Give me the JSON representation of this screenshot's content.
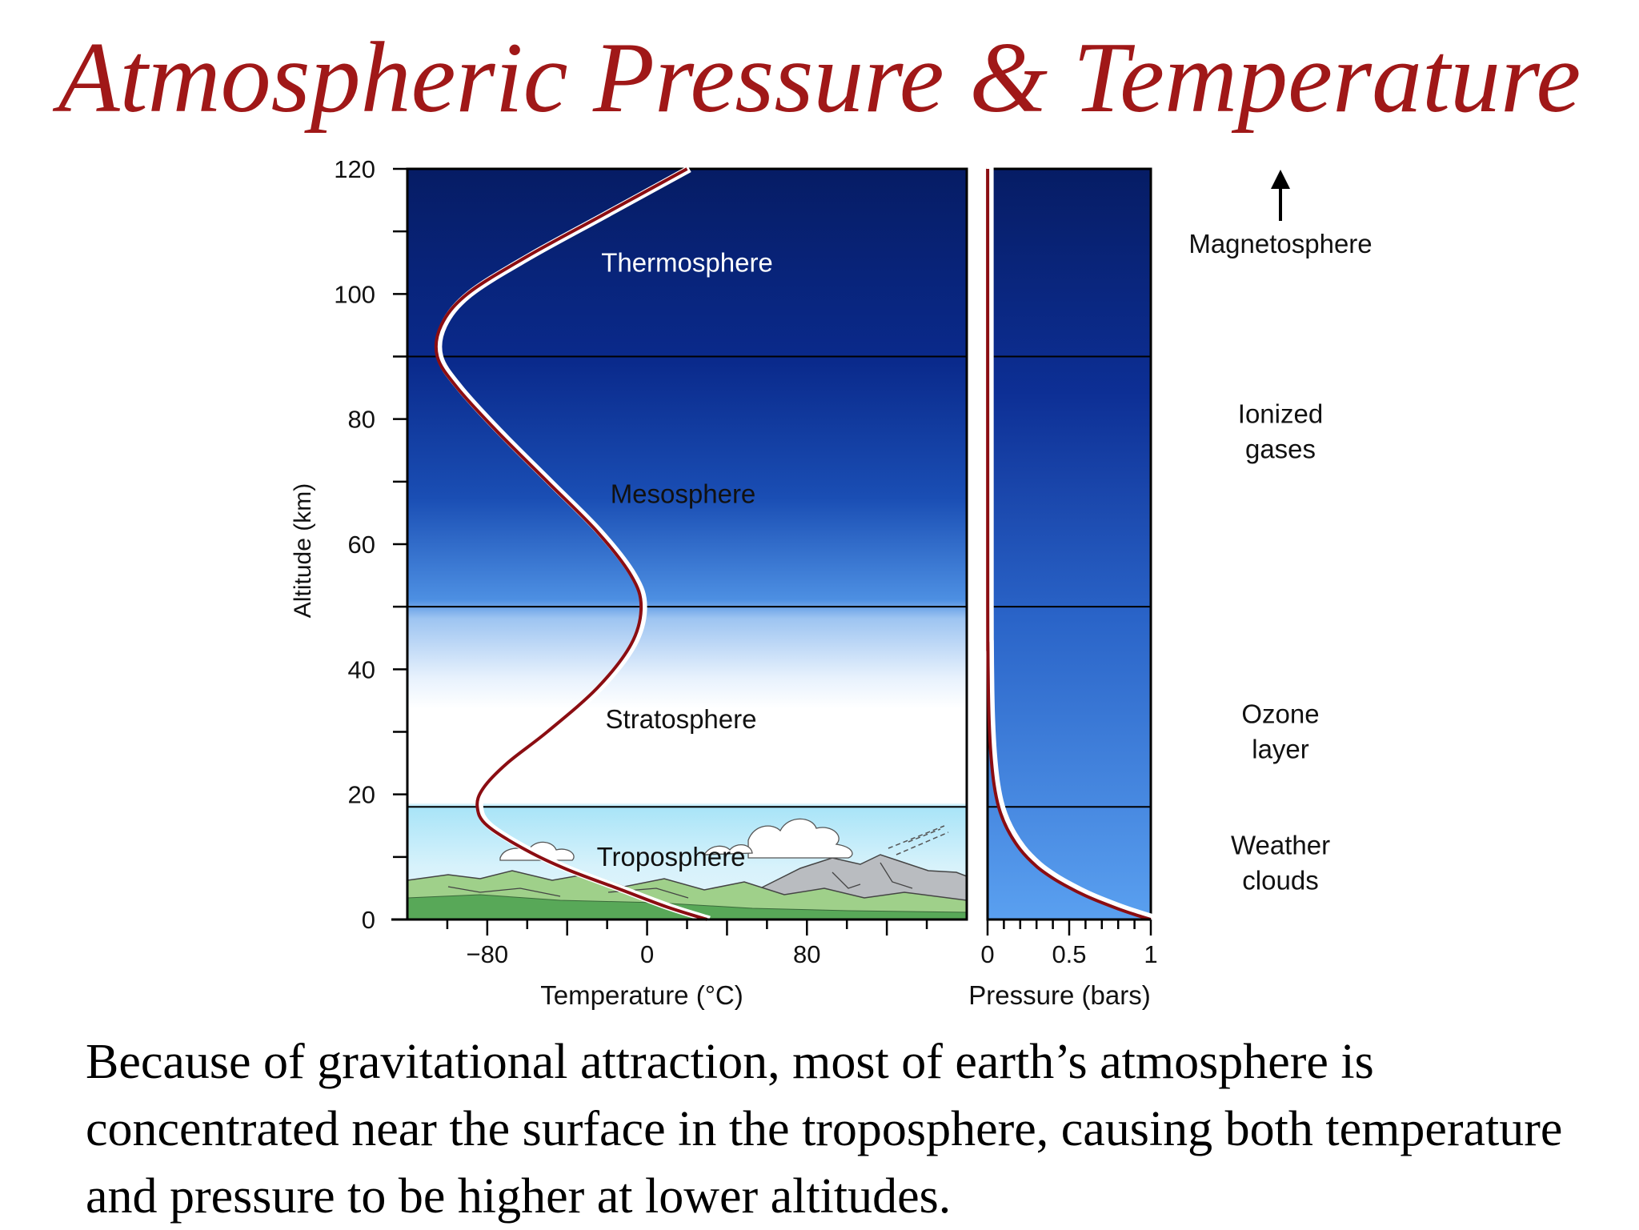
{
  "slide": {
    "title": "Atmospheric Pressure & Temperature",
    "caption": "Because of gravitational attraction, most of earth’s atmosphere is concentrated near the surface in the troposphere, causing both temperature and pressure to be higher at lower altitudes."
  },
  "colors": {
    "title": "#a01818",
    "curve": "#8b0d12",
    "sky_top": "#061c64",
    "sky_mid": "#3f83d8",
    "sky_light": "#ffffff",
    "troposphere_light": "#a8e4f8"
  },
  "chart_data": [
    {
      "type": "line",
      "title": "",
      "xlabel": "Temperature (°C)",
      "ylabel": "Altitude (km)",
      "xlim": [
        -120,
        160
      ],
      "ylim": [
        0,
        120
      ],
      "x_ticks": [
        -80,
        0,
        80
      ],
      "y_ticks": [
        0,
        20,
        40,
        60,
        80,
        100,
        120
      ],
      "layer_boundaries_km": [
        18,
        50,
        90
      ],
      "layers": [
        {
          "label": "Thermosphere",
          "alt_km": 105,
          "temp_c": 20
        },
        {
          "label": "Mesosphere",
          "alt_km": 68,
          "temp_c": 18
        },
        {
          "label": "Stratosphere",
          "alt_km": 32,
          "temp_c": 17
        },
        {
          "label": "Troposphere",
          "alt_km": 10,
          "temp_c": 12
        }
      ],
      "series": [
        {
          "x": [
            30,
            10,
            -15,
            -40,
            -60,
            -80,
            -85,
            -82,
            -70,
            -50,
            -25,
            -8,
            -3,
            -8,
            -25,
            -50,
            -75,
            -95,
            -105,
            -103,
            -90,
            -60,
            -20,
            20
          ],
          "y": [
            0,
            2,
            5,
            8,
            11,
            15,
            18,
            21,
            25,
            30,
            37,
            44,
            50,
            55,
            62,
            70,
            78,
            85,
            90,
            95,
            100,
            106,
            113,
            120
          ]
        }
      ]
    },
    {
      "type": "line",
      "title": "",
      "xlabel": "Pressure (bars)",
      "ylabel": "",
      "xlim": [
        0,
        1
      ],
      "ylim": [
        0,
        120
      ],
      "x_ticks": [
        "0",
        "0.5",
        "1"
      ],
      "series": [
        {
          "x": [
            1.0,
            0.9,
            0.8,
            0.7,
            0.6,
            0.5,
            0.4,
            0.3,
            0.2,
            0.12,
            0.07,
            0.04,
            0.02,
            0.01,
            0.005,
            0.002,
            0.001
          ],
          "y": [
            0,
            0.8,
            1.7,
            2.7,
            3.8,
            5.1,
            6.6,
            8.5,
            11.2,
            14.5,
            17.8,
            21.5,
            26.5,
            31.5,
            36.5,
            44,
            50
          ]
        }
      ]
    }
  ],
  "side_labels": [
    {
      "text": "Magnetosphere",
      "alt_km": 108,
      "arrow": true
    },
    {
      "lines": [
        "Ionized",
        "gases"
      ],
      "alt_km": 78
    },
    {
      "lines": [
        "Ozone",
        "layer"
      ],
      "alt_km": 30
    },
    {
      "lines": [
        "Weather",
        "clouds"
      ],
      "alt_km": 9
    }
  ]
}
